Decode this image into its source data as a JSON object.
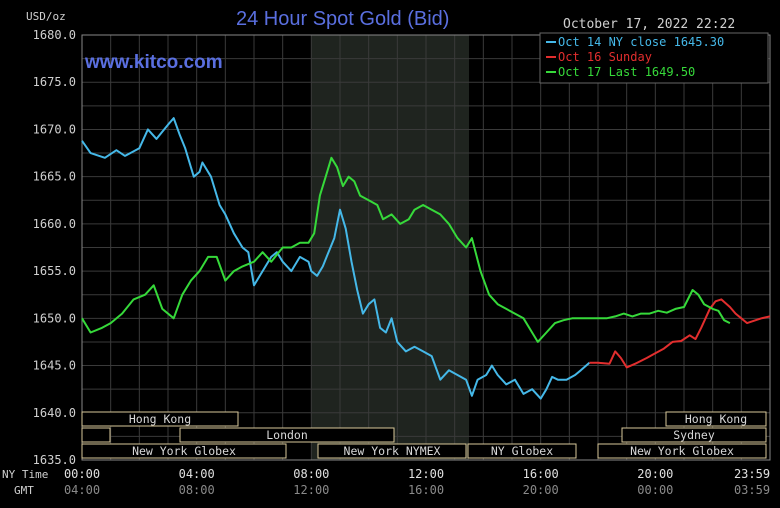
{
  "header": {
    "title": "24 Hour Spot Gold (Bid)",
    "timestamp": "October 17, 2022 22:22",
    "unit": "USD/oz",
    "watermark": "www.kitco.com"
  },
  "colors": {
    "background": "#000000",
    "grid": "#3a3a3a",
    "shade": "#1f241f",
    "title": "#5a6fe0",
    "watermark": "#5a6fe0",
    "text": "#d0d0d0",
    "session_box": "#d8c89a"
  },
  "sessions": {
    "hong_kong_left": "Hong Kong",
    "london": "London",
    "ny_globex_left": "New York Globex",
    "ny_nymex": "New York NYMEX",
    "ny_globex_mid": "NY Globex",
    "hong_kong_right": "Hong Kong",
    "sydney": "Sydney",
    "ny_globex_right": "New York Globex"
  },
  "x_axis": {
    "ny_time_label": "NY Time",
    "gmt_label": "GMT",
    "ny_ticks": [
      "00:00",
      "04:00",
      "08:00",
      "12:00",
      "16:00",
      "20:00",
      "23:59"
    ],
    "gmt_ticks": [
      "04:00",
      "08:00",
      "12:00",
      "16:00",
      "20:00",
      "00:00",
      "03:59"
    ]
  },
  "chart_data": {
    "type": "line",
    "title": "24 Hour Spot Gold (Bid)",
    "ylabel": "USD/oz",
    "ylim": [
      1635,
      1680
    ],
    "yticks": [
      "1680.0",
      "1675.0",
      "1670.0",
      "1665.0",
      "1660.0",
      "1655.0",
      "1650.0",
      "1645.0",
      "1640.0",
      "1635.0"
    ],
    "x_unit": "hours (NY time)",
    "xlim": [
      0,
      24
    ],
    "grid": true,
    "legend_position": "top-right",
    "series": [
      {
        "name": "Oct 14 NY close 1645.30",
        "color": "#45b8e8",
        "points": [
          [
            0,
            1668.8
          ],
          [
            0.3,
            1667.5
          ],
          [
            0.8,
            1667.0
          ],
          [
            1.2,
            1667.8
          ],
          [
            1.5,
            1667.2
          ],
          [
            2.0,
            1668.0
          ],
          [
            2.3,
            1670.0
          ],
          [
            2.6,
            1669.0
          ],
          [
            3.0,
            1670.5
          ],
          [
            3.2,
            1671.2
          ],
          [
            3.4,
            1669.5
          ],
          [
            3.6,
            1668.0
          ],
          [
            3.8,
            1666.0
          ],
          [
            3.9,
            1665.0
          ],
          [
            4.1,
            1665.5
          ],
          [
            4.2,
            1666.5
          ],
          [
            4.5,
            1665.0
          ],
          [
            4.8,
            1662.0
          ],
          [
            5.0,
            1661.0
          ],
          [
            5.3,
            1659.0
          ],
          [
            5.6,
            1657.5
          ],
          [
            5.8,
            1657.0
          ],
          [
            6.0,
            1653.5
          ],
          [
            6.3,
            1655.0
          ],
          [
            6.6,
            1656.5
          ],
          [
            6.8,
            1657.0
          ],
          [
            7.0,
            1656.0
          ],
          [
            7.3,
            1655.0
          ],
          [
            7.6,
            1656.5
          ],
          [
            7.9,
            1656.0
          ],
          [
            8.0,
            1655.0
          ],
          [
            8.2,
            1654.5
          ],
          [
            8.4,
            1655.5
          ],
          [
            8.6,
            1657.0
          ],
          [
            8.8,
            1658.5
          ],
          [
            9.0,
            1661.5
          ],
          [
            9.2,
            1659.5
          ],
          [
            9.4,
            1656.0
          ],
          [
            9.6,
            1653.0
          ],
          [
            9.8,
            1650.5
          ],
          [
            10.0,
            1651.5
          ],
          [
            10.2,
            1652.0
          ],
          [
            10.4,
            1649.0
          ],
          [
            10.6,
            1648.5
          ],
          [
            10.8,
            1650.0
          ],
          [
            11.0,
            1647.5
          ],
          [
            11.3,
            1646.5
          ],
          [
            11.6,
            1647.0
          ],
          [
            11.9,
            1646.5
          ],
          [
            12.2,
            1646.0
          ],
          [
            12.5,
            1643.5
          ],
          [
            12.8,
            1644.5
          ],
          [
            13.1,
            1644.0
          ],
          [
            13.4,
            1643.5
          ],
          [
            13.6,
            1641.8
          ],
          [
            13.8,
            1643.5
          ],
          [
            14.1,
            1644.0
          ],
          [
            14.3,
            1645.0
          ],
          [
            14.5,
            1644.0
          ],
          [
            14.8,
            1643.0
          ],
          [
            15.1,
            1643.5
          ],
          [
            15.4,
            1642.0
          ],
          [
            15.7,
            1642.5
          ],
          [
            16.0,
            1641.5
          ],
          [
            16.2,
            1642.5
          ],
          [
            16.4,
            1643.8
          ],
          [
            16.6,
            1643.5
          ],
          [
            16.9,
            1643.5
          ],
          [
            17.2,
            1644.0
          ],
          [
            17.4,
            1644.5
          ],
          [
            17.7,
            1645.3
          ]
        ]
      },
      {
        "name": "Oct 16 Sunday",
        "color": "#e22e2e",
        "points": [
          [
            17.7,
            1645.3
          ],
          [
            18.0,
            1645.3
          ],
          [
            18.4,
            1645.2
          ],
          [
            18.6,
            1646.5
          ],
          [
            18.8,
            1645.8
          ],
          [
            19.0,
            1644.8
          ],
          [
            19.3,
            1645.2
          ],
          [
            19.7,
            1645.8
          ],
          [
            20.0,
            1646.3
          ],
          [
            20.3,
            1646.8
          ],
          [
            20.6,
            1647.5
          ],
          [
            20.9,
            1647.6
          ],
          [
            21.2,
            1648.2
          ],
          [
            21.4,
            1647.8
          ],
          [
            21.6,
            1649.0
          ],
          [
            21.9,
            1651.0
          ],
          [
            22.1,
            1651.8
          ],
          [
            22.3,
            1652.0
          ],
          [
            22.6,
            1651.2
          ],
          [
            22.8,
            1650.5
          ],
          [
            23.0,
            1650.0
          ],
          [
            23.2,
            1649.5
          ],
          [
            23.5,
            1649.8
          ],
          [
            23.7,
            1650.0
          ],
          [
            24.0,
            1650.2
          ]
        ]
      },
      {
        "name": "Oct 17 Last 1649.50",
        "color": "#36d93a",
        "points": [
          [
            0,
            1650.0
          ],
          [
            0.3,
            1648.5
          ],
          [
            0.7,
            1649.0
          ],
          [
            1.0,
            1649.5
          ],
          [
            1.4,
            1650.5
          ],
          [
            1.8,
            1652.0
          ],
          [
            2.2,
            1652.5
          ],
          [
            2.5,
            1653.5
          ],
          [
            2.8,
            1651.0
          ],
          [
            3.2,
            1650.0
          ],
          [
            3.5,
            1652.5
          ],
          [
            3.8,
            1654.0
          ],
          [
            4.1,
            1655.0
          ],
          [
            4.4,
            1656.5
          ],
          [
            4.7,
            1656.5
          ],
          [
            5.0,
            1654.0
          ],
          [
            5.3,
            1655.0
          ],
          [
            5.6,
            1655.5
          ],
          [
            6.0,
            1656.0
          ],
          [
            6.3,
            1657.0
          ],
          [
            6.6,
            1656.0
          ],
          [
            7.0,
            1657.5
          ],
          [
            7.3,
            1657.5
          ],
          [
            7.6,
            1658.0
          ],
          [
            7.9,
            1658.0
          ],
          [
            8.1,
            1659.0
          ],
          [
            8.3,
            1663.0
          ],
          [
            8.5,
            1665.0
          ],
          [
            8.7,
            1667.0
          ],
          [
            8.9,
            1666.0
          ],
          [
            9.1,
            1664.0
          ],
          [
            9.3,
            1665.0
          ],
          [
            9.5,
            1664.5
          ],
          [
            9.7,
            1663.0
          ],
          [
            10.0,
            1662.5
          ],
          [
            10.3,
            1662.0
          ],
          [
            10.5,
            1660.5
          ],
          [
            10.8,
            1661.0
          ],
          [
            11.1,
            1660.0
          ],
          [
            11.4,
            1660.5
          ],
          [
            11.6,
            1661.5
          ],
          [
            11.9,
            1662.0
          ],
          [
            12.2,
            1661.5
          ],
          [
            12.5,
            1661.0
          ],
          [
            12.8,
            1660.0
          ],
          [
            13.1,
            1658.5
          ],
          [
            13.4,
            1657.5
          ],
          [
            13.6,
            1658.5
          ],
          [
            13.9,
            1655.0
          ],
          [
            14.2,
            1652.5
          ],
          [
            14.5,
            1651.5
          ],
          [
            14.8,
            1651.0
          ],
          [
            15.1,
            1650.5
          ],
          [
            15.4,
            1650.0
          ],
          [
            15.7,
            1648.5
          ],
          [
            15.9,
            1647.5
          ],
          [
            16.2,
            1648.5
          ],
          [
            16.5,
            1649.5
          ],
          [
            16.8,
            1649.8
          ],
          [
            17.1,
            1650.0
          ],
          [
            17.5,
            1650.0
          ],
          [
            17.9,
            1650.0
          ],
          [
            18.3,
            1650.0
          ],
          [
            18.6,
            1650.2
          ],
          [
            18.9,
            1650.5
          ],
          [
            19.2,
            1650.2
          ],
          [
            19.5,
            1650.5
          ],
          [
            19.8,
            1650.5
          ],
          [
            20.1,
            1650.8
          ],
          [
            20.4,
            1650.6
          ],
          [
            20.7,
            1651.0
          ],
          [
            21.0,
            1651.2
          ],
          [
            21.3,
            1653.0
          ],
          [
            21.5,
            1652.5
          ],
          [
            21.7,
            1651.5
          ],
          [
            22.0,
            1651.0
          ],
          [
            22.2,
            1650.8
          ],
          [
            22.4,
            1649.8
          ],
          [
            22.6,
            1649.5
          ]
        ]
      }
    ]
  }
}
